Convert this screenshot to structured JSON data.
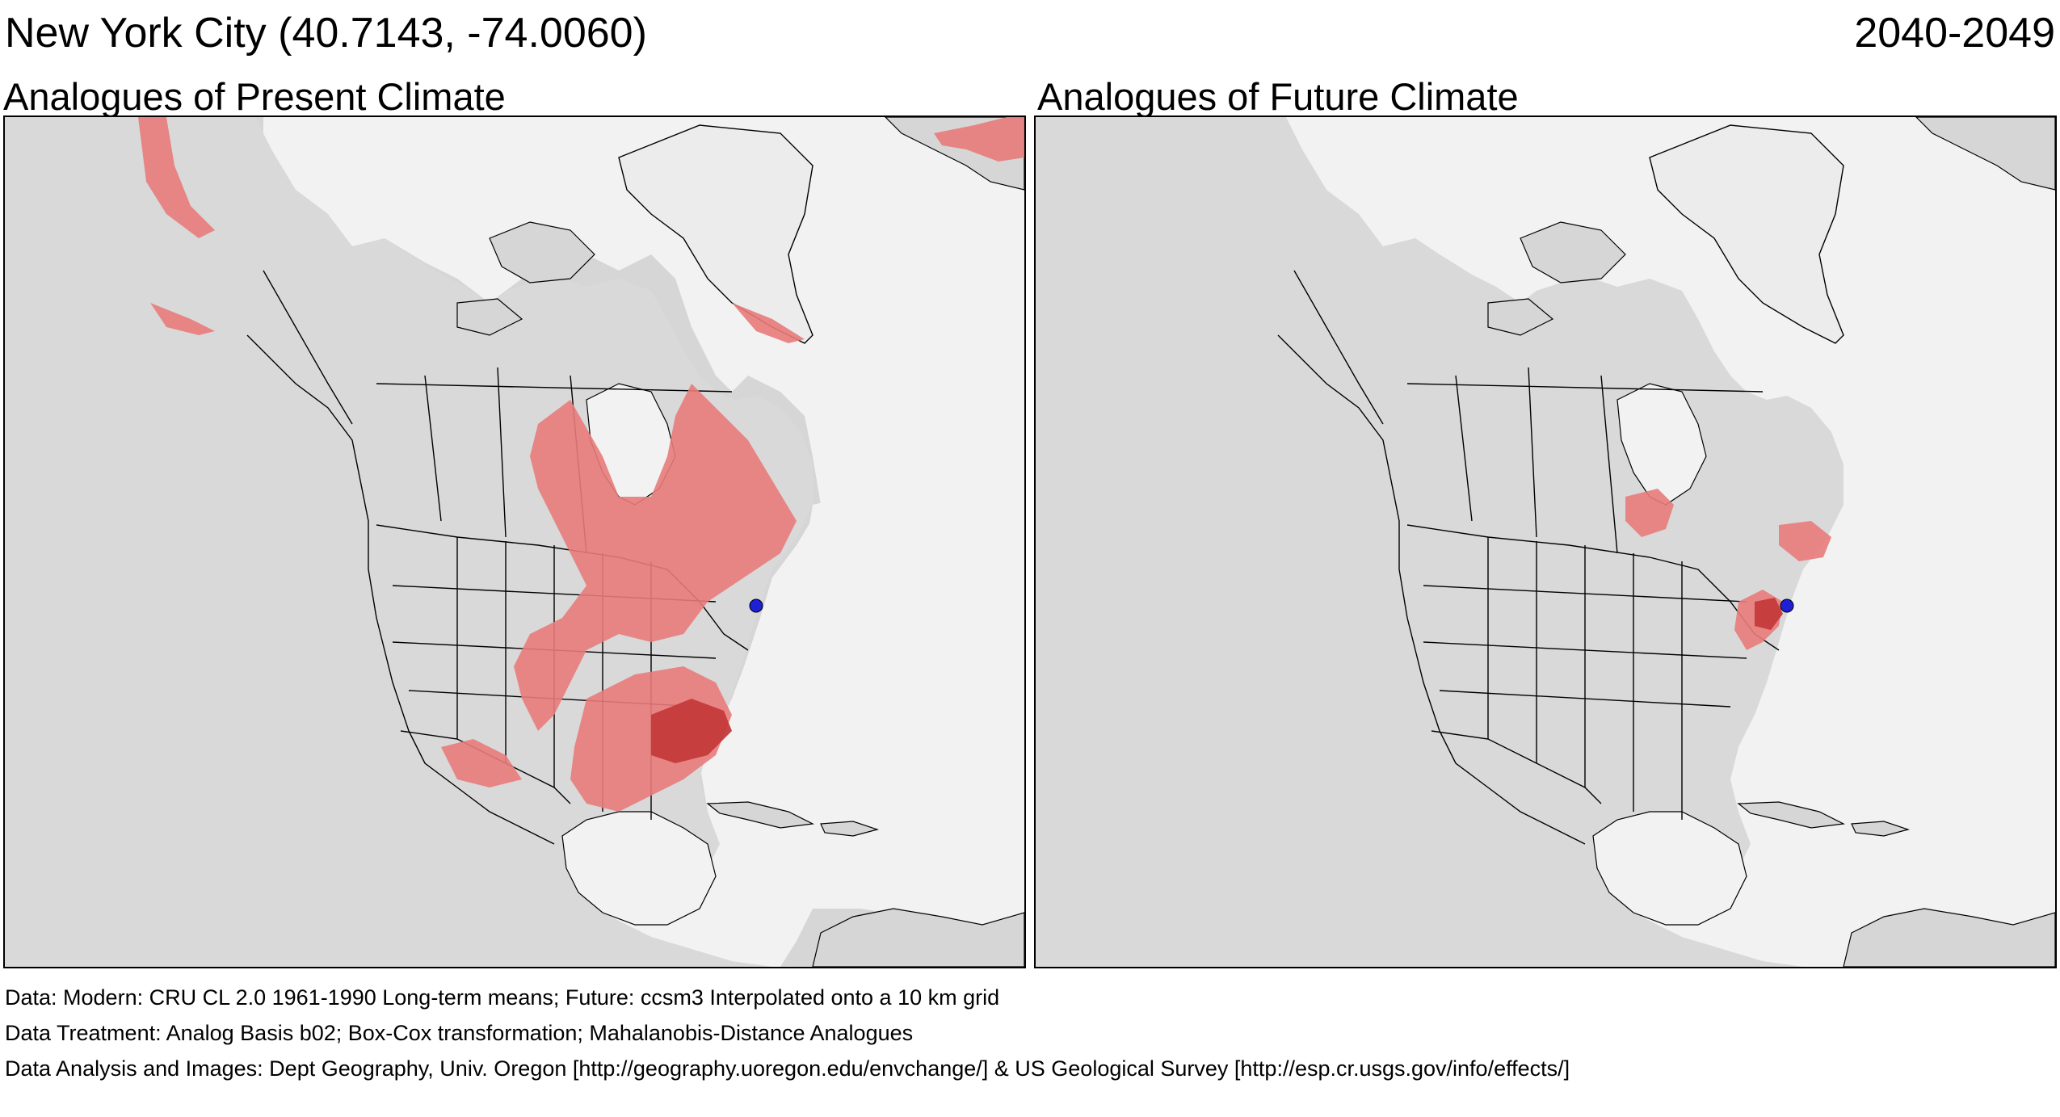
{
  "header": {
    "location": "New York City  (40.7143, -74.0060)",
    "period": "2040-2049"
  },
  "panels": [
    {
      "id": "present",
      "title": "Analogues of Present Climate"
    },
    {
      "id": "future",
      "title": "Analogues of Future Climate"
    }
  ],
  "footer": {
    "line1": "Data:  Modern: CRU CL 2.0 1961-1990 Long-term means; Future: ccsm3 Interpolated onto a 10 km grid",
    "line2": "Data Treatment:  Analog Basis b02; Box-Cox transformation; Mahalanobis-Distance Analogues",
    "line3": "Data Analysis and Images:  Dept Geography, Univ. Oregon [http://geography.uoregon.edu/envchange/] & US Geological Survey [http://esp.cr.usgs.gov/info/effects/]"
  },
  "map_style": {
    "ocean_color": "#f2f2f2",
    "land_color": "#d6d6d6",
    "border_color": "#000000",
    "analogue_color": "#e87b7b",
    "strong_analogue_color": "#c43a3a",
    "target_marker_color": "#1f1fd6"
  }
}
